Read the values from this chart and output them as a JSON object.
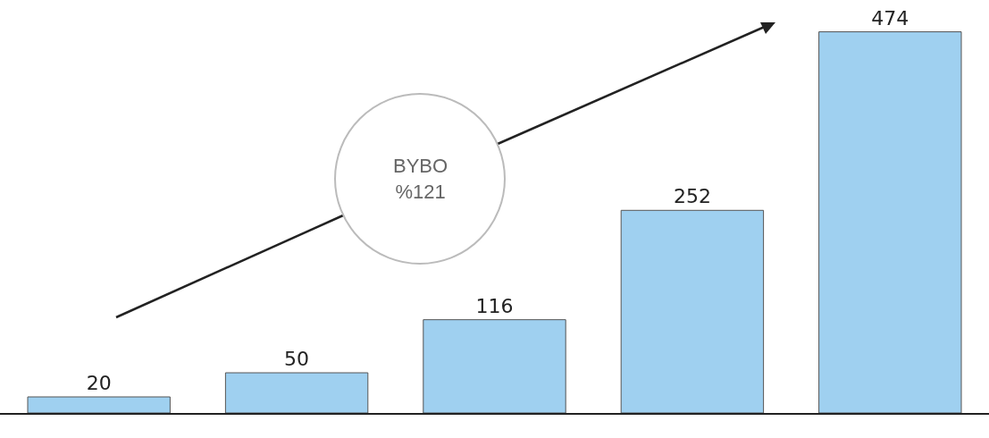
{
  "chart_data": {
    "type": "bar",
    "categories": [
      null,
      null,
      null,
      null,
      null
    ],
    "values": [
      20,
      50,
      116,
      252,
      474
    ],
    "color": "#9fd0f0",
    "data_labels": true,
    "annotations": [
      "BYBO\n%121"
    ]
  }
}
